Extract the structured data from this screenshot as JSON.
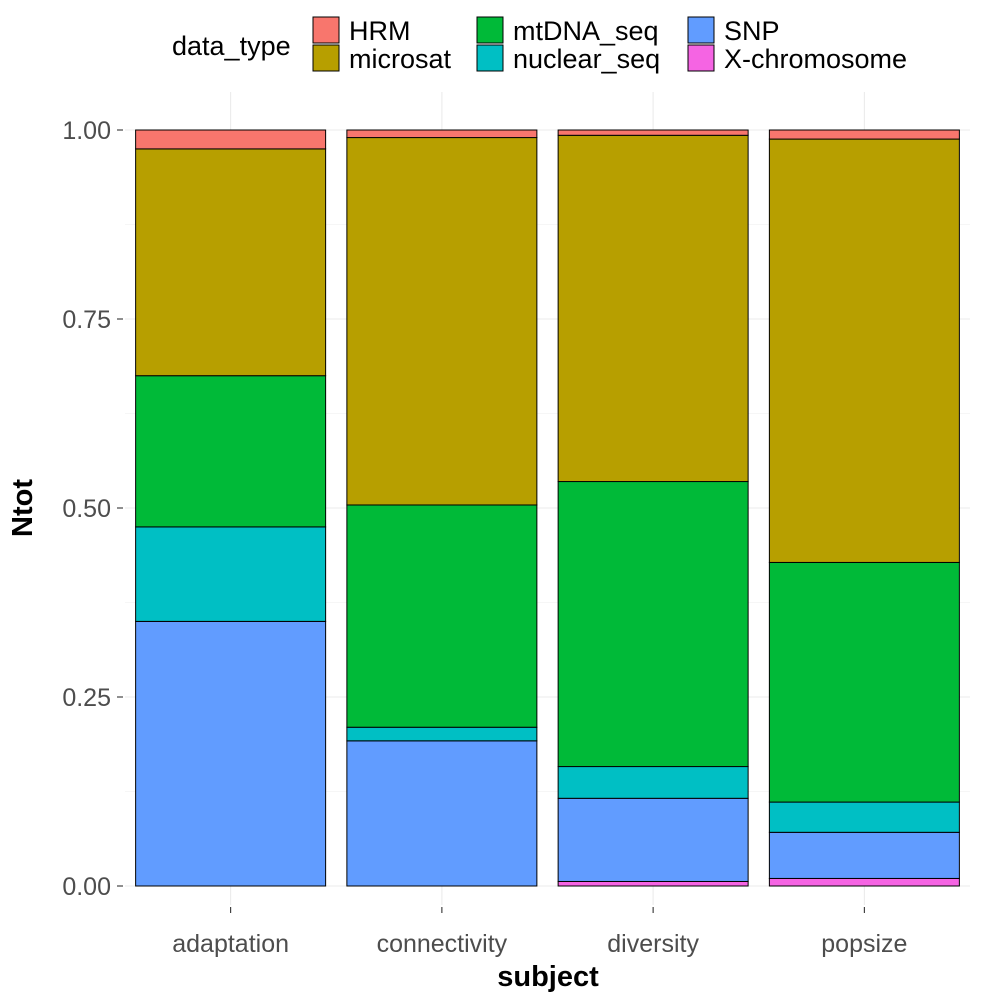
{
  "chart_data": {
    "type": "bar",
    "stacked": true,
    "position": "fill",
    "title": "",
    "xlabel": "subject",
    "ylabel": "Ntot",
    "ylim": [
      0,
      1
    ],
    "yticks": [
      0,
      0.25,
      0.5,
      0.75,
      1
    ],
    "ytick_labels": [
      "0.00",
      "0.25",
      "0.50",
      "0.75",
      "1.00"
    ],
    "grid": true,
    "legend": {
      "title": "data_type",
      "placement": "top"
    },
    "categories": [
      "adaptation",
      "connectivity",
      "diversity",
      "popsize"
    ],
    "series": [
      {
        "name": "HRM",
        "color": "#F8766D",
        "values": [
          0.025,
          0.01,
          0.007,
          0.012
        ]
      },
      {
        "name": "microsat",
        "color": "#B79F00",
        "values": [
          0.3,
          0.486,
          0.458,
          0.56
        ]
      },
      {
        "name": "mtDNA_seq",
        "color": "#00BA38",
        "values": [
          0.2,
          0.294,
          0.377,
          0.317
        ]
      },
      {
        "name": "nuclear_seq",
        "color": "#00BFC4",
        "values": [
          0.125,
          0.018,
          0.042,
          0.04
        ]
      },
      {
        "name": "SNP",
        "color": "#619CFF",
        "values": [
          0.35,
          0.192,
          0.11,
          0.061
        ]
      },
      {
        "name": "X-chromosome",
        "color": "#F564E3",
        "values": [
          0,
          0,
          0.006,
          0.01
        ]
      }
    ]
  }
}
